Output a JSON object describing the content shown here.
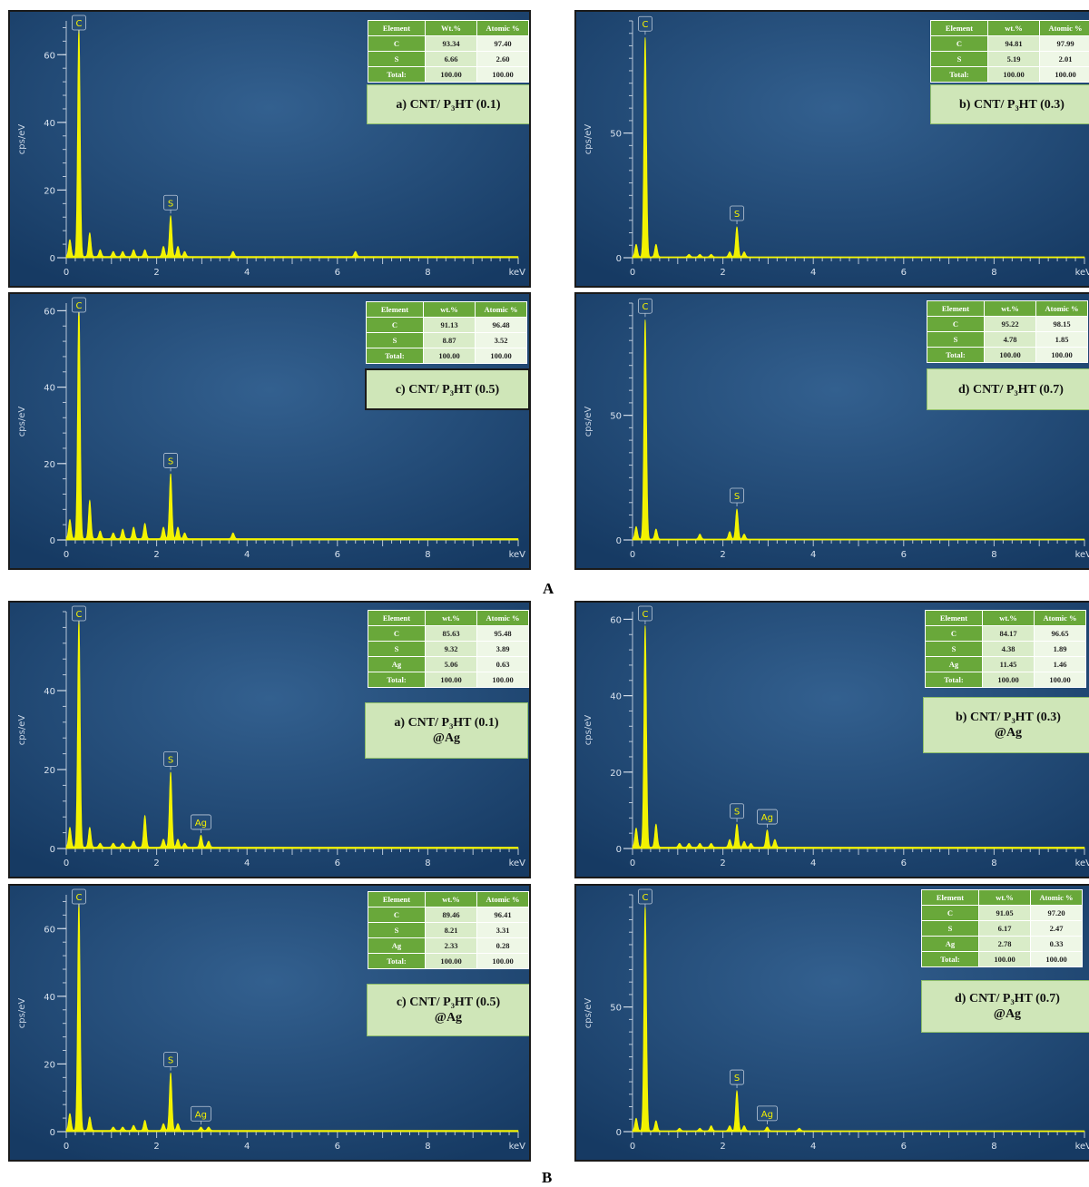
{
  "section_labels": [
    "A",
    "B"
  ],
  "panels": [
    {
      "caption": "a) CNT/ P3HT (0.1)",
      "caption_lines": [
        "a) CNT/ P₃HT (0.1)"
      ],
      "table_headers": [
        "Element",
        "Wt.%",
        "Atomic %"
      ],
      "rows": [
        [
          "C",
          "93.34",
          "97.40"
        ],
        [
          "S",
          "6.66",
          "2.60"
        ],
        [
          "Total:",
          "100.00",
          "100.00"
        ]
      ],
      "peaks": [
        {
          "label": "C",
          "x": 0.28,
          "y": 68
        },
        {
          "label": "S",
          "x": 2.31,
          "y": 12
        }
      ]
    },
    {
      "caption": "b) CNT/ P3HT (0.3)",
      "caption_lines": [
        "b) CNT/ P₃HT (0.3)"
      ],
      "table_headers": [
        "Element",
        "wt.%",
        "Atomic %"
      ],
      "rows": [
        [
          "C",
          "94.81",
          "97.99"
        ],
        [
          "S",
          "5.19",
          "2.01"
        ],
        [
          "Total:",
          "100.00",
          "100.00"
        ]
      ],
      "peaks": [
        {
          "label": "C",
          "x": 0.28,
          "y": 88
        },
        {
          "label": "S",
          "x": 2.31,
          "y": 12
        }
      ]
    },
    {
      "caption": "c) CNT/ P3HT (0.5)",
      "caption_lines": [
        "c) CNT/ P₃HT (0.5)"
      ],
      "table_headers": [
        "Element",
        "wt.%",
        "Atomic %"
      ],
      "rows": [
        [
          "C",
          "91.13",
          "96.48"
        ],
        [
          "S",
          "8.87",
          "3.52"
        ],
        [
          "Total:",
          "100.00",
          "100.00"
        ]
      ],
      "peaks": [
        {
          "label": "C",
          "x": 0.28,
          "y": 62
        },
        {
          "label": "S",
          "x": 2.31,
          "y": 17
        }
      ]
    },
    {
      "caption": "d) CNT/ P3HT (0.7)",
      "caption_lines": [
        "d) CNT/ P₃HT (0.7)"
      ],
      "table_headers": [
        "Element",
        "wt.%",
        "Atomic %"
      ],
      "rows": [
        [
          "C",
          "95.22",
          "98.15"
        ],
        [
          "S",
          "4.78",
          "1.85"
        ],
        [
          "Total:",
          "100.00",
          "100.00"
        ]
      ],
      "peaks": [
        {
          "label": "C",
          "x": 0.28,
          "y": 88
        },
        {
          "label": "S",
          "x": 2.31,
          "y": 12
        }
      ]
    },
    {
      "caption": "a) CNT/ P3HT (0.1) @Ag",
      "caption_lines": [
        "a) CNT/ P₃HT (0.1)",
        "@Ag"
      ],
      "table_headers": [
        "Element",
        "wt.%",
        "Atomic %"
      ],
      "rows": [
        [
          "C",
          "85.63",
          "95.48"
        ],
        [
          "S",
          "9.32",
          "3.89"
        ],
        [
          "Ag",
          "5.06",
          "0.63"
        ],
        [
          "Total:",
          "100.00",
          "100.00"
        ]
      ],
      "peaks": [
        {
          "label": "C",
          "x": 0.28,
          "y": 58
        },
        {
          "label": "S",
          "x": 2.31,
          "y": 19
        },
        {
          "label": "Ag",
          "x": 2.98,
          "y": 3
        }
      ]
    },
    {
      "caption": "b) CNT/ P3HT (0.3) @Ag",
      "caption_lines": [
        "b) CNT/ P₃HT (0.3)",
        "@Ag"
      ],
      "table_headers": [
        "Element",
        "wt.%",
        "Atomic %"
      ],
      "rows": [
        [
          "C",
          "84.17",
          "96.65"
        ],
        [
          "S",
          "4.38",
          "1.89"
        ],
        [
          "Ag",
          "11.45",
          "1.46"
        ],
        [
          "Total:",
          "100.00",
          "100.00"
        ]
      ],
      "peaks": [
        {
          "label": "C",
          "x": 0.28,
          "y": 58
        },
        {
          "label": "S",
          "x": 2.31,
          "y": 6
        },
        {
          "label": "Ag",
          "x": 2.98,
          "y": 4.5
        }
      ]
    },
    {
      "caption": "c) CNT/ P3HT (0.5) @Ag",
      "caption_lines": [
        "c) CNT/ P₃HT (0.5)",
        "@Ag"
      ],
      "table_headers": [
        "Element",
        "wt.%",
        "Atomic %"
      ],
      "rows": [
        [
          "C",
          "89.46",
          "96.41"
        ],
        [
          "S",
          "8.21",
          "3.31"
        ],
        [
          "Ag",
          "2.33",
          "0.28"
        ],
        [
          "Total:",
          "100.00",
          "100.00"
        ]
      ],
      "peaks": [
        {
          "label": "C",
          "x": 0.28,
          "y": 68
        },
        {
          "label": "S",
          "x": 2.31,
          "y": 17
        },
        {
          "label": "Ag",
          "x": 2.98,
          "y": 1
        }
      ]
    },
    {
      "caption": "d) CNT/ P3HT (0.7) @Ag",
      "caption_lines": [
        "d) CNT/ P₃HT (0.7)",
        "@Ag"
      ],
      "table_headers": [
        "Element",
        "wt.%",
        "Atomic %"
      ],
      "rows": [
        [
          "C",
          "91.05",
          "97.20"
        ],
        [
          "S",
          "6.17",
          "2.47"
        ],
        [
          "Ag",
          "2.78",
          "0.33"
        ],
        [
          "Total:",
          "100.00",
          "100.00"
        ]
      ],
      "peaks": [
        {
          "label": "C",
          "x": 0.28,
          "y": 90
        },
        {
          "label": "S",
          "x": 2.31,
          "y": 16
        },
        {
          "label": "Ag",
          "x": 2.98,
          "y": 1.5
        }
      ]
    }
  ],
  "chart_data": [
    {
      "type": "line",
      "title": "",
      "xlabel": "keV",
      "ylabel": "cps/eV",
      "xlim": [
        0,
        10
      ],
      "ylim": [
        0,
        70
      ],
      "x_ticks": [
        0,
        2,
        4,
        6,
        8
      ],
      "y_ticks": [
        0,
        20,
        40,
        60
      ],
      "series": [
        {
          "points": [
            [
              0.08,
              5
            ],
            [
              0.28,
              68
            ],
            [
              0.52,
              7
            ],
            [
              0.75,
              2
            ],
            [
              1.04,
              1.5
            ],
            [
              1.25,
              1.5
            ],
            [
              1.49,
              2
            ],
            [
              1.74,
              2
            ],
            [
              2.15,
              3
            ],
            [
              2.31,
              12
            ],
            [
              2.47,
              3
            ],
            [
              2.62,
              1.5
            ],
            [
              3.69,
              1.5
            ],
            [
              6.4,
              1.5
            ]
          ]
        }
      ]
    },
    {
      "type": "line",
      "title": "",
      "xlabel": "keV",
      "ylabel": "cps/eV",
      "xlim": [
        0,
        10
      ],
      "ylim": [
        0,
        95
      ],
      "x_ticks": [
        0,
        2,
        4,
        6,
        8
      ],
      "y_ticks": [
        0,
        50
      ],
      "series": [
        {
          "points": [
            [
              0.08,
              5
            ],
            [
              0.28,
              88
            ],
            [
              0.52,
              5
            ],
            [
              1.25,
              1
            ],
            [
              1.49,
              1
            ],
            [
              1.74,
              1
            ],
            [
              2.15,
              2
            ],
            [
              2.31,
              12
            ],
            [
              2.47,
              2
            ]
          ]
        }
      ]
    },
    {
      "type": "line",
      "title": "",
      "xlabel": "keV",
      "ylabel": "cps/eV",
      "xlim": [
        0,
        10
      ],
      "ylim": [
        0,
        62
      ],
      "x_ticks": [
        0,
        2,
        4,
        6,
        8
      ],
      "y_ticks": [
        0,
        20,
        40,
        60
      ],
      "series": [
        {
          "points": [
            [
              0.08,
              5
            ],
            [
              0.28,
              62
            ],
            [
              0.52,
              10
            ],
            [
              0.75,
              2
            ],
            [
              1.04,
              1.5
            ],
            [
              1.25,
              2.5
            ],
            [
              1.49,
              3
            ],
            [
              1.74,
              4
            ],
            [
              2.15,
              3
            ],
            [
              2.31,
              17
            ],
            [
              2.47,
              3
            ],
            [
              2.62,
              1.5
            ],
            [
              3.69,
              1.5
            ]
          ]
        }
      ]
    },
    {
      "type": "line",
      "title": "",
      "xlabel": "keV",
      "ylabel": "cps/eV",
      "xlim": [
        0,
        10
      ],
      "ylim": [
        0,
        95
      ],
      "x_ticks": [
        0,
        2,
        4,
        6,
        8
      ],
      "y_ticks": [
        0,
        50
      ],
      "series": [
        {
          "points": [
            [
              0.08,
              5
            ],
            [
              0.28,
              88
            ],
            [
              0.52,
              4
            ],
            [
              1.49,
              2
            ],
            [
              2.15,
              3
            ],
            [
              2.31,
              12
            ],
            [
              2.47,
              2
            ]
          ]
        }
      ]
    },
    {
      "type": "line",
      "title": "",
      "xlabel": "keV",
      "ylabel": "cps/eV",
      "xlim": [
        0,
        10
      ],
      "ylim": [
        0,
        60
      ],
      "x_ticks": [
        0,
        2,
        4,
        6,
        8
      ],
      "y_ticks": [
        0,
        20,
        40
      ],
      "series": [
        {
          "points": [
            [
              0.08,
              5
            ],
            [
              0.28,
              58
            ],
            [
              0.52,
              5
            ],
            [
              0.75,
              1
            ],
            [
              1.04,
              1
            ],
            [
              1.25,
              1
            ],
            [
              1.49,
              1.5
            ],
            [
              1.74,
              8
            ],
            [
              2.15,
              2
            ],
            [
              2.31,
              19
            ],
            [
              2.47,
              2
            ],
            [
              2.62,
              1
            ],
            [
              2.98,
              3
            ],
            [
              3.15,
              1.5
            ]
          ]
        }
      ]
    },
    {
      "type": "line",
      "title": "",
      "xlabel": "keV",
      "ylabel": "cps/eV",
      "xlim": [
        0,
        10
      ],
      "ylim": [
        0,
        62
      ],
      "x_ticks": [
        0,
        2,
        4,
        6,
        8
      ],
      "y_ticks": [
        0,
        20,
        40,
        60
      ],
      "series": [
        {
          "points": [
            [
              0.08,
              5
            ],
            [
              0.28,
              58
            ],
            [
              0.52,
              6
            ],
            [
              1.04,
              1
            ],
            [
              1.25,
              1
            ],
            [
              1.49,
              1
            ],
            [
              1.74,
              1
            ],
            [
              2.15,
              2
            ],
            [
              2.31,
              6
            ],
            [
              2.47,
              1.5
            ],
            [
              2.62,
              1
            ],
            [
              2.98,
              4.5
            ],
            [
              3.15,
              2
            ]
          ]
        }
      ]
    },
    {
      "type": "line",
      "title": "",
      "xlabel": "keV",
      "ylabel": "cps/eV",
      "xlim": [
        0,
        10
      ],
      "ylim": [
        0,
        70
      ],
      "x_ticks": [
        0,
        2,
        4,
        6,
        8
      ],
      "y_ticks": [
        0,
        20,
        40,
        60
      ],
      "series": [
        {
          "points": [
            [
              0.08,
              5
            ],
            [
              0.28,
              68
            ],
            [
              0.52,
              4
            ],
            [
              1.04,
              1
            ],
            [
              1.25,
              1
            ],
            [
              1.49,
              1.5
            ],
            [
              1.74,
              3
            ],
            [
              2.15,
              2
            ],
            [
              2.31,
              17
            ],
            [
              2.47,
              2
            ],
            [
              2.98,
              1
            ],
            [
              3.15,
              1
            ]
          ]
        }
      ]
    },
    {
      "type": "line",
      "title": "",
      "xlabel": "keV",
      "ylabel": "cps/eV",
      "xlim": [
        0,
        10
      ],
      "ylim": [
        0,
        95
      ],
      "x_ticks": [
        0,
        2,
        4,
        6,
        8
      ],
      "y_ticks": [
        0,
        50
      ],
      "series": [
        {
          "points": [
            [
              0.08,
              5
            ],
            [
              0.28,
              90
            ],
            [
              0.52,
              4
            ],
            [
              1.04,
              1
            ],
            [
              1.49,
              1
            ],
            [
              1.74,
              2
            ],
            [
              2.15,
              2
            ],
            [
              2.31,
              16
            ],
            [
              2.47,
              2
            ],
            [
              2.98,
              1.5
            ],
            [
              3.69,
              1
            ]
          ]
        }
      ]
    }
  ]
}
